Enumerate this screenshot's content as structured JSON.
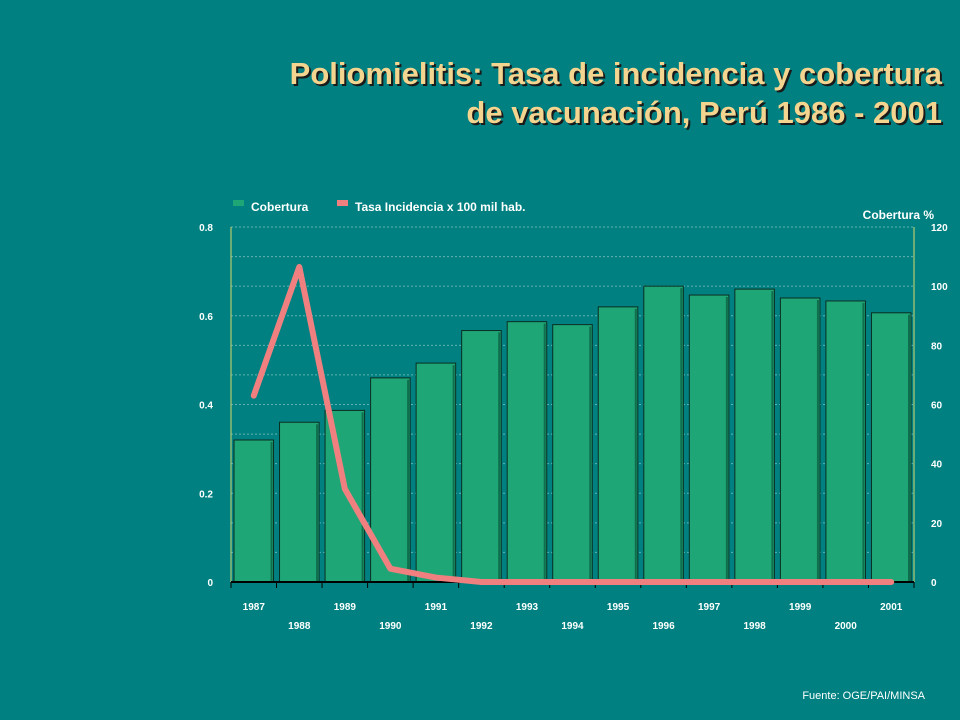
{
  "title_line1": "Poliomielitis: Tasa de incidencia y cobertura",
  "title_line2": "de vacunación, Perú 1986 - 2001",
  "source": "Fuente: OGE/PAI/MINSA",
  "colors": {
    "background": "#008080",
    "bar": "#1fa676",
    "line": "#f08080",
    "title": "#f4d58f"
  },
  "chart_data": {
    "type": "bar",
    "categories": [
      "1987",
      "1988",
      "1989",
      "1990",
      "1991",
      "1992",
      "1993",
      "1994",
      "1995",
      "1996",
      "1997",
      "1998",
      "1999",
      "2000",
      "2001"
    ],
    "series": [
      {
        "name": "Cobertura",
        "type": "bar",
        "axis": "right",
        "values": [
          48,
          54,
          58,
          69,
          74,
          85,
          88,
          87,
          93,
          100,
          97,
          99,
          96,
          95,
          91
        ]
      },
      {
        "name": "Tasa Incidencia x 100 mil hab.",
        "type": "line",
        "axis": "left",
        "values": [
          0.42,
          0.71,
          0.21,
          0.03,
          0.01,
          0.0,
          0.0,
          0.0,
          0.0,
          0.0,
          0.0,
          0.0,
          0.0,
          0.0,
          0.0
        ]
      }
    ],
    "y_left": {
      "ylim": [
        0,
        0.8
      ],
      "ticks": [
        "0",
        "0.2",
        "0.4",
        "0.6",
        "0.8"
      ]
    },
    "y_right": {
      "label": "Cobertura %",
      "ylim": [
        0,
        120
      ],
      "ticks": [
        "0",
        "20",
        "40",
        "60",
        "80",
        "100",
        "120"
      ]
    },
    "grid": true,
    "legend_position": "top-left"
  }
}
